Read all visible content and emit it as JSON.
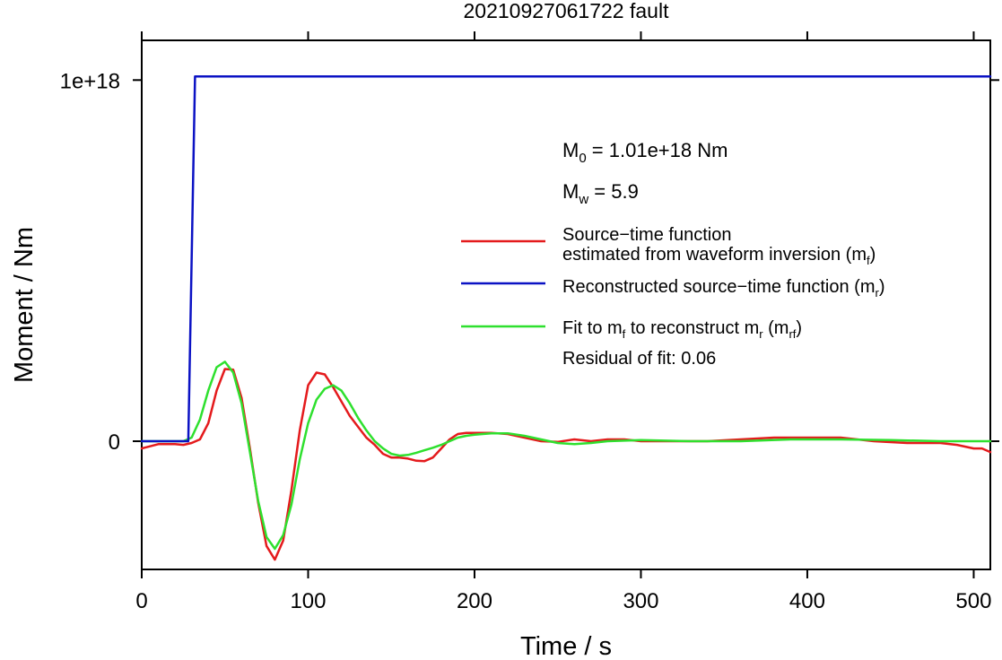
{
  "chart_data": {
    "type": "line",
    "title": "20210927061722 fault",
    "xlabel": "Time / s",
    "ylabel": "Moment / Nm",
    "xlim": [
      0,
      510
    ],
    "ylim": [
      -3.55e+17,
      1.11e+18
    ],
    "xticks": [
      0,
      100,
      200,
      300,
      400,
      500
    ],
    "xtick_labels": [
      "0",
      "100",
      "200",
      "300",
      "400",
      "500"
    ],
    "yticks": [
      0,
      1e+18
    ],
    "ytick_labels": [
      "0",
      "1e+18"
    ],
    "grid": false,
    "legend_position": "right",
    "annotations": {
      "m0": {
        "sym": "M",
        "sub": "0",
        "text": " = 1.01e+18 Nm"
      },
      "mw": {
        "sym": "M",
        "sub": "w",
        "text": " = 5.9"
      },
      "residual": "Residual of fit: 0.06"
    },
    "legend": [
      {
        "color": "#e41a1c",
        "line1": "Source−time function",
        "line2a": "estimated from waveform inversion (m",
        "line2sub": "f",
        "line2b": ")"
      },
      {
        "color": "#0b12c4",
        "line1a": "Reconstructed source−time function (m",
        "line1sub": "r",
        "line1b": ")"
      },
      {
        "color": "#2ee02e",
        "p1": "Fit to m",
        "s1": "f",
        "p2": " to reconstruct m",
        "s2": "r",
        "p3": " (m",
        "s3": "rf",
        "p4": ")"
      }
    ],
    "series": [
      {
        "color": "#e41a1c",
        "x": [
          0,
          10,
          20,
          25,
          30,
          35,
          40,
          45,
          50,
          55,
          60,
          65,
          70,
          75,
          80,
          85,
          90,
          95,
          100,
          105,
          110,
          115,
          120,
          125,
          130,
          135,
          140,
          145,
          150,
          155,
          160,
          165,
          170,
          175,
          180,
          185,
          190,
          195,
          200,
          210,
          220,
          230,
          240,
          250,
          260,
          270,
          280,
          290,
          300,
          320,
          340,
          360,
          380,
          400,
          420,
          440,
          460,
          480,
          490,
          500,
          505,
          510
        ],
        "y": [
          -2e+16,
          -8000000000000000.0,
          -8000000000000000.0,
          -1e+16,
          -5000000000000000.0,
          5000000000000000.0,
          5e+16,
          1.4e+17,
          2e+17,
          1.98e+17,
          1.2e+17,
          -2e+16,
          -1.7e+17,
          -2.9e+17,
          -3.28e+17,
          -2.75e+17,
          -1.35e+17,
          3e+16,
          1.55e+17,
          1.9e+17,
          1.85e+17,
          1.5e+17,
          1.1e+17,
          7e+16,
          4e+16,
          1e+16,
          -1e+16,
          -3.5e+16,
          -4.5e+16,
          -4.5e+16,
          -4.8e+16,
          -5.4e+16,
          -5.5e+16,
          -4.5e+16,
          -2e+16,
          5000000000000000.0,
          2e+16,
          2.3e+16,
          2.3e+16,
          2.3e+16,
          2e+16,
          1e+16,
          0,
          -2000000000000000.0,
          5000000000000000.0,
          0,
          5000000000000000.0,
          5000000000000000.0,
          0,
          0,
          0,
          5000000000000000.0,
          1e+16,
          1e+16,
          1e+16,
          0,
          -5000000000000000.0,
          -5000000000000000.0,
          -1e+16,
          -2e+16,
          -2e+16,
          -3e+16
        ]
      },
      {
        "color": "#0b12c4",
        "x": [
          0,
          28,
          32,
          510
        ],
        "y": [
          0,
          0,
          1.01e+18,
          1.01e+18
        ]
      },
      {
        "color": "#2ee02e",
        "x": [
          0,
          10,
          20,
          25,
          30,
          35,
          40,
          45,
          50,
          55,
          60,
          65,
          70,
          75,
          80,
          85,
          90,
          95,
          100,
          105,
          110,
          115,
          120,
          125,
          130,
          135,
          140,
          145,
          150,
          155,
          160,
          165,
          170,
          175,
          180,
          185,
          190,
          195,
          200,
          210,
          220,
          230,
          240,
          250,
          260,
          270,
          280,
          300,
          330,
          360,
          390,
          420,
          450,
          480,
          510
        ],
        "y": [
          0,
          0,
          0,
          0,
          1e+16,
          6e+16,
          1.4e+17,
          2.05e+17,
          2.2e+17,
          1.9e+17,
          1.05e+17,
          -3e+16,
          -1.65e+17,
          -2.65e+17,
          -2.98e+17,
          -2.6e+17,
          -1.75e+17,
          -5e+16,
          5e+16,
          1.15e+17,
          1.45e+17,
          1.55e+17,
          1.4e+17,
          1.05e+17,
          6.5e+16,
          3e+16,
          0,
          -2e+16,
          -3.5e+16,
          -4e+16,
          -3.8e+16,
          -3.2e+16,
          -2.5e+16,
          -1.8e+16,
          -1e+16,
          0,
          1e+16,
          1.5e+16,
          1.8e+16,
          2.2e+16,
          2.2e+16,
          1.5e+16,
          5000000000000000.0,
          -5000000000000000.0,
          -8000000000000000.0,
          -5000000000000000.0,
          0,
          3000000000000000.0,
          0,
          0,
          5000000000000000.0,
          5000000000000000.0,
          3000000000000000.0,
          0,
          0
        ]
      }
    ]
  }
}
